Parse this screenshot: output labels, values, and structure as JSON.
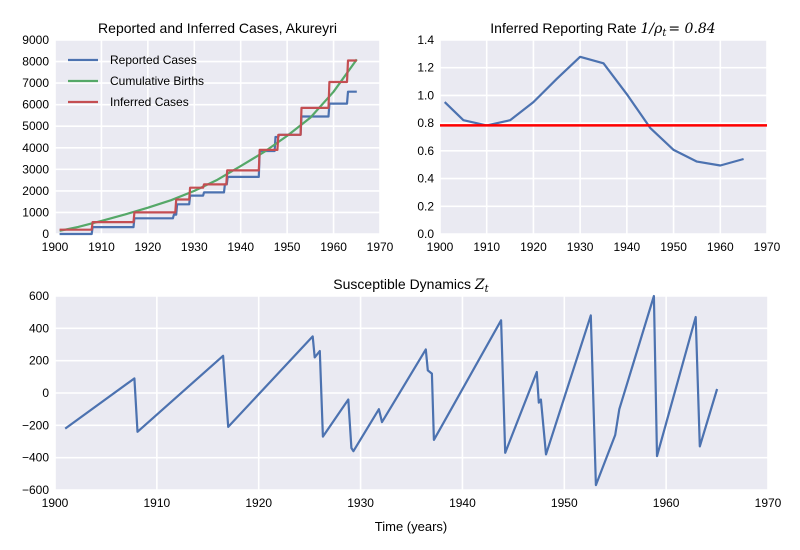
{
  "chart_data": [
    {
      "type": "line",
      "title": "Reported and Inferred Cases, Akureyri",
      "xlim": [
        1900,
        1970
      ],
      "ylim": [
        0,
        9000
      ],
      "xticks": [
        "1900",
        "1910",
        "1920",
        "1930",
        "1940",
        "1950",
        "1960",
        "1970"
      ],
      "yticks": [
        "0",
        "1000",
        "2000",
        "3000",
        "4000",
        "5000",
        "6000",
        "7000",
        "8000",
        "9000"
      ],
      "legend_position": "top-left",
      "grid": true,
      "series": [
        {
          "name": "Reported Cases",
          "color": "#4c72b0",
          "x": [
            1901,
            1907.9,
            1908.1,
            1916.9,
            1917.1,
            1925.4,
            1925.6,
            1926.1,
            1926.3,
            1928.9,
            1929.1,
            1931.9,
            1932.1,
            1936.4,
            1936.6,
            1937.0,
            1937.2,
            1943.9,
            1944.1,
            1947.3,
            1947.5,
            1948.1,
            1948.3,
            1952.9,
            1953.1,
            1958.9,
            1959.1,
            1962.9,
            1963.1,
            1965
          ],
          "y": [
            0,
            0,
            320,
            320,
            730,
            730,
            900,
            900,
            1380,
            1380,
            1780,
            1780,
            1930,
            1930,
            2300,
            2300,
            2650,
            2650,
            3850,
            3850,
            4500,
            4500,
            4600,
            4600,
            5450,
            5450,
            6050,
            6050,
            6600,
            6600
          ]
        },
        {
          "name": "Cumulative Births",
          "color": "#55a868",
          "x": [
            1901,
            1905,
            1910,
            1915,
            1920,
            1925,
            1930,
            1935,
            1940,
            1945,
            1950,
            1955,
            1960,
            1965
          ],
          "y": [
            150,
            330,
            610,
            900,
            1220,
            1570,
            2000,
            2520,
            3150,
            3800,
            4550,
            5400,
            6600,
            8100
          ]
        },
        {
          "name": "Inferred Cases",
          "color": "#c44e52",
          "x": [
            1901,
            1907.9,
            1908.1,
            1916.9,
            1917.1,
            1925.9,
            1926.1,
            1928.9,
            1929.1,
            1931.9,
            1932.1,
            1936.9,
            1937.1,
            1943.9,
            1944.1,
            1947.9,
            1948.1,
            1952.9,
            1953.1,
            1958.9,
            1959.1,
            1962.9,
            1963.1,
            1965
          ],
          "y": [
            200,
            200,
            550,
            550,
            1000,
            1000,
            1600,
            1600,
            2150,
            2150,
            2300,
            2300,
            2950,
            2950,
            3900,
            3900,
            4600,
            4600,
            5850,
            5850,
            7050,
            7050,
            8050,
            8050
          ]
        }
      ]
    },
    {
      "type": "line",
      "title": "Inferred Reporting Rate ",
      "title_math": "1/ρ",
      "title_math_sub": "t",
      "title_math_tail": "= 0.84",
      "xlim": [
        1900,
        1970
      ],
      "ylim": [
        0,
        1.5
      ],
      "xticks": [
        "1900",
        "1910",
        "1920",
        "1930",
        "1940",
        "1950",
        "1960",
        "1970"
      ],
      "yticks": [
        "0.0",
        "0.2",
        "0.4",
        "0.6",
        "0.8",
        "1.0",
        "1.2",
        "1.4"
      ],
      "grid": true,
      "series": [
        {
          "color": "#4c72b0",
          "x": [
            1901,
            1905,
            1910,
            1915,
            1920,
            1925,
            1930,
            1935,
            1940,
            1945,
            1950,
            1955,
            1960,
            1965
          ],
          "y": [
            1.02,
            0.88,
            0.84,
            0.88,
            1.02,
            1.2,
            1.37,
            1.32,
            1.08,
            0.82,
            0.65,
            0.56,
            0.53,
            0.58
          ]
        }
      ],
      "hline": {
        "y": 0.84,
        "color": "#ff0000"
      }
    },
    {
      "type": "line",
      "title": "Susceptible Dynamics ",
      "title_math": "Z",
      "title_math_sub": "t",
      "xlabel": "Time (years)",
      "xlim": [
        1900,
        1970
      ],
      "ylim": [
        -600,
        600
      ],
      "xticks": [
        "1900",
        "1910",
        "1920",
        "1930",
        "1940",
        "1950",
        "1960",
        "1970"
      ],
      "yticks": [
        "−600",
        "−400",
        "−200",
        "0",
        "200",
        "400",
        "600"
      ],
      "grid": true,
      "series": [
        {
          "color": "#4c72b0",
          "x": [
            1901,
            1907.8,
            1908.1,
            1916.5,
            1917.0,
            1925.3,
            1925.5,
            1926.0,
            1926.3,
            1928.8,
            1929.1,
            1929.3,
            1931.8,
            1932.1,
            1936.4,
            1936.6,
            1937.0,
            1937.2,
            1943.8,
            1944.2,
            1947.3,
            1947.5,
            1947.7,
            1948.2,
            1952.6,
            1953.1,
            1955.0,
            1955.4,
            1958.8,
            1959.1,
            1962.9,
            1963.3,
            1965
          ],
          "y": [
            -220,
            90,
            -240,
            230,
            -210,
            350,
            220,
            260,
            -270,
            -40,
            -340,
            -360,
            -100,
            -180,
            270,
            140,
            120,
            -290,
            450,
            -370,
            130,
            -60,
            -40,
            -380,
            480,
            -570,
            -260,
            -100,
            600,
            -390,
            470,
            -330,
            25
          ]
        }
      ]
    }
  ]
}
